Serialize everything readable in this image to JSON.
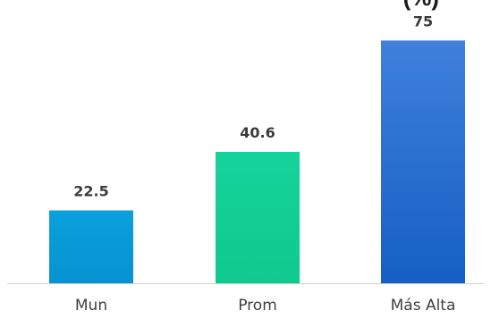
{
  "title_fragment": "(%)",
  "colors": {
    "axis": "#cfcfcf",
    "label": "#3a3a3a",
    "category_label": "#404040",
    "background": "#ffffff"
  },
  "chart_data": {
    "type": "bar",
    "categories": [
      "Mun",
      "Prom",
      "Más Alta"
    ],
    "values": [
      22.5,
      40.6,
      75
    ],
    "value_labels": [
      "22.5",
      "40.6",
      "75"
    ],
    "bar_colors": [
      {
        "top": "#0aa0dd",
        "bottom": "#0892d0"
      },
      {
        "top": "#14d39a",
        "bottom": "#10c98f"
      },
      {
        "top": "#3f80db",
        "bottom": "#155fc4"
      }
    ],
    "xlabel": "",
    "ylabel": "",
    "ylim": [
      0,
      82
    ],
    "grid": false,
    "legend": "none"
  }
}
